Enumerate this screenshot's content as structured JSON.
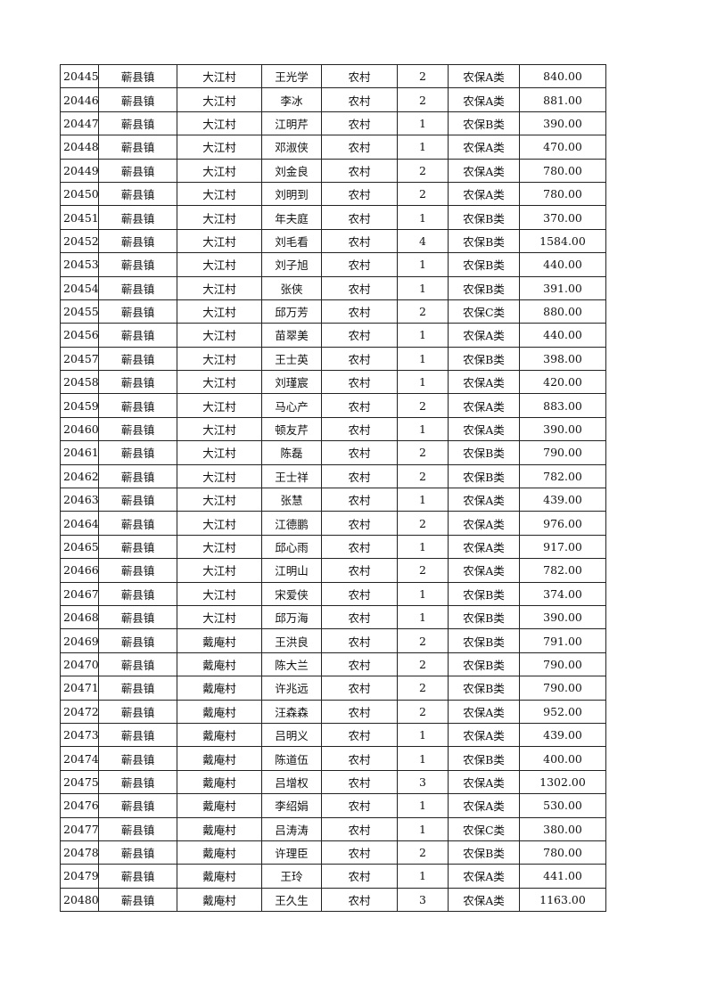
{
  "table": {
    "rows": [
      [
        "20445",
        "蕲县镇",
        "大江村",
        "王光学",
        "农村",
        "2",
        "农保A类",
        "840.00"
      ],
      [
        "20446",
        "蕲县镇",
        "大江村",
        "李冰",
        "农村",
        "2",
        "农保A类",
        "881.00"
      ],
      [
        "20447",
        "蕲县镇",
        "大江村",
        "江明芹",
        "农村",
        "1",
        "农保B类",
        "390.00"
      ],
      [
        "20448",
        "蕲县镇",
        "大江村",
        "邓淑侠",
        "农村",
        "1",
        "农保A类",
        "470.00"
      ],
      [
        "20449",
        "蕲县镇",
        "大江村",
        "刘金良",
        "农村",
        "2",
        "农保A类",
        "780.00"
      ],
      [
        "20450",
        "蕲县镇",
        "大江村",
        "刘明到",
        "农村",
        "2",
        "农保A类",
        "780.00"
      ],
      [
        "20451",
        "蕲县镇",
        "大江村",
        "年夫庭",
        "农村",
        "1",
        "农保B类",
        "370.00"
      ],
      [
        "20452",
        "蕲县镇",
        "大江村",
        "刘毛看",
        "农村",
        "4",
        "农保B类",
        "1584.00"
      ],
      [
        "20453",
        "蕲县镇",
        "大江村",
        "刘子旭",
        "农村",
        "1",
        "农保B类",
        "440.00"
      ],
      [
        "20454",
        "蕲县镇",
        "大江村",
        "张侠",
        "农村",
        "1",
        "农保B类",
        "391.00"
      ],
      [
        "20455",
        "蕲县镇",
        "大江村",
        "邱万芳",
        "农村",
        "2",
        "农保C类",
        "880.00"
      ],
      [
        "20456",
        "蕲县镇",
        "大江村",
        "苗翠美",
        "农村",
        "1",
        "农保A类",
        "440.00"
      ],
      [
        "20457",
        "蕲县镇",
        "大江村",
        "王士英",
        "农村",
        "1",
        "农保B类",
        "398.00"
      ],
      [
        "20458",
        "蕲县镇",
        "大江村",
        "刘瑾宸",
        "农村",
        "1",
        "农保A类",
        "420.00"
      ],
      [
        "20459",
        "蕲县镇",
        "大江村",
        "马心产",
        "农村",
        "2",
        "农保A类",
        "883.00"
      ],
      [
        "20460",
        "蕲县镇",
        "大江村",
        "顿友芹",
        "农村",
        "1",
        "农保A类",
        "390.00"
      ],
      [
        "20461",
        "蕲县镇",
        "大江村",
        "陈磊",
        "农村",
        "2",
        "农保B类",
        "790.00"
      ],
      [
        "20462",
        "蕲县镇",
        "大江村",
        "王士祥",
        "农村",
        "2",
        "农保B类",
        "782.00"
      ],
      [
        "20463",
        "蕲县镇",
        "大江村",
        "张慧",
        "农村",
        "1",
        "农保A类",
        "439.00"
      ],
      [
        "20464",
        "蕲县镇",
        "大江村",
        "江德鹏",
        "农村",
        "2",
        "农保A类",
        "976.00"
      ],
      [
        "20465",
        "蕲县镇",
        "大江村",
        "邱心雨",
        "农村",
        "1",
        "农保A类",
        "917.00"
      ],
      [
        "20466",
        "蕲县镇",
        "大江村",
        "江明山",
        "农村",
        "2",
        "农保A类",
        "782.00"
      ],
      [
        "20467",
        "蕲县镇",
        "大江村",
        "宋爱侠",
        "农村",
        "1",
        "农保B类",
        "374.00"
      ],
      [
        "20468",
        "蕲县镇",
        "大江村",
        "邱万海",
        "农村",
        "1",
        "农保B类",
        "390.00"
      ],
      [
        "20469",
        "蕲县镇",
        "戴庵村",
        "王洪良",
        "农村",
        "2",
        "农保B类",
        "791.00"
      ],
      [
        "20470",
        "蕲县镇",
        "戴庵村",
        "陈大兰",
        "农村",
        "2",
        "农保B类",
        "790.00"
      ],
      [
        "20471",
        "蕲县镇",
        "戴庵村",
        "许兆远",
        "农村",
        "2",
        "农保B类",
        "790.00"
      ],
      [
        "20472",
        "蕲县镇",
        "戴庵村",
        "汪森森",
        "农村",
        "2",
        "农保A类",
        "952.00"
      ],
      [
        "20473",
        "蕲县镇",
        "戴庵村",
        "吕明义",
        "农村",
        "1",
        "农保A类",
        "439.00"
      ],
      [
        "20474",
        "蕲县镇",
        "戴庵村",
        "陈道伍",
        "农村",
        "1",
        "农保B类",
        "400.00"
      ],
      [
        "20475",
        "蕲县镇",
        "戴庵村",
        "吕增权",
        "农村",
        "3",
        "农保A类",
        "1302.00"
      ],
      [
        "20476",
        "蕲县镇",
        "戴庵村",
        "李绍娟",
        "农村",
        "1",
        "农保A类",
        "530.00"
      ],
      [
        "20477",
        "蕲县镇",
        "戴庵村",
        "吕涛涛",
        "农村",
        "1",
        "农保C类",
        "380.00"
      ],
      [
        "20478",
        "蕲县镇",
        "戴庵村",
        "许理臣",
        "农村",
        "2",
        "农保B类",
        "780.00"
      ],
      [
        "20479",
        "蕲县镇",
        "戴庵村",
        "王玲",
        "农村",
        "1",
        "农保A类",
        "441.00"
      ],
      [
        "20480",
        "蕲县镇",
        "戴庵村",
        "王久生",
        "农村",
        "3",
        "农保A类",
        "1163.00"
      ]
    ]
  }
}
